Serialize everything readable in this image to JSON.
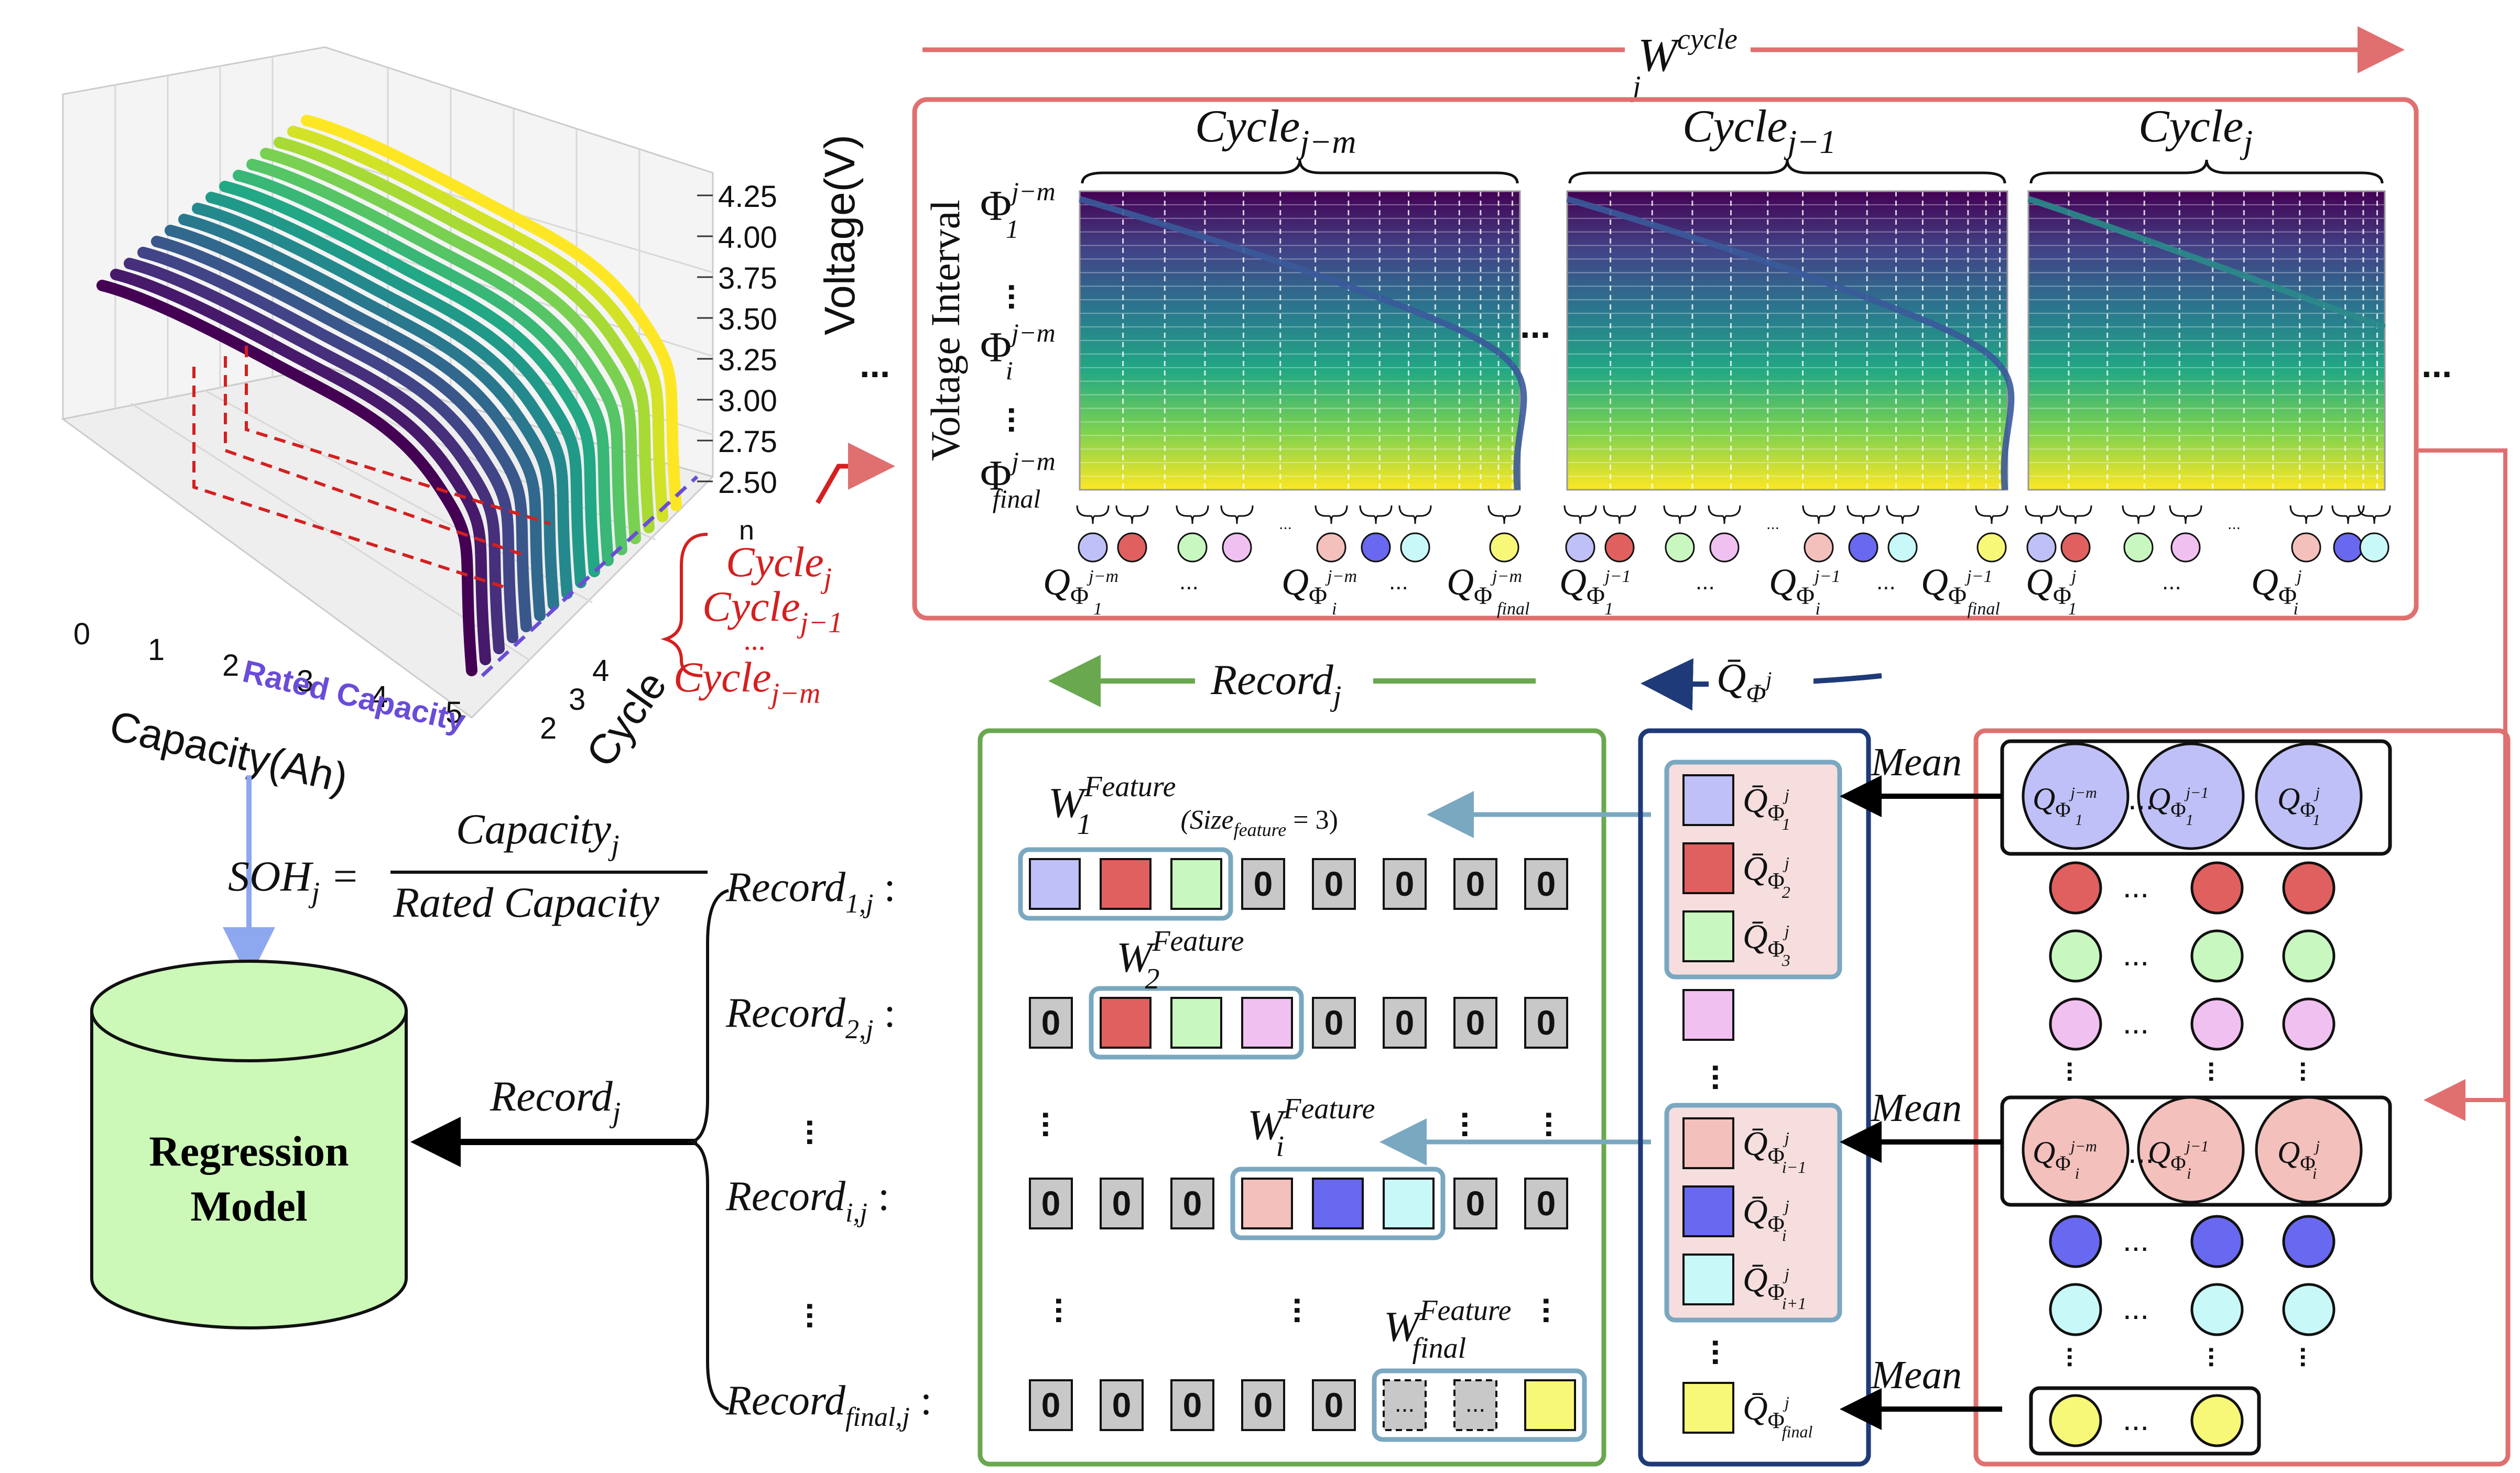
{
  "plot3d": {
    "voltage_ticks": [
      "4.25",
      "4.00",
      "3.75",
      "3.50",
      "3.25",
      "3.00",
      "2.75",
      "2.50"
    ],
    "voltage_label": "Voltage(V)",
    "capacity_ticks": [
      "0",
      "1",
      "2",
      "3",
      "4",
      "5"
    ],
    "capacity_label": "Capacity(Ah)",
    "cycle_ticks": [
      "2",
      "3",
      "4"
    ],
    "cycle_label": "Cycle",
    "cycle_n": "n",
    "rated_capacity": "Rated Capacity",
    "ellipsis": "..."
  },
  "cycle_labels": {
    "j": "Cycle",
    "j_sub": "j",
    "j1": "Cycle",
    "j1_sub": "j−1",
    "dots": "...",
    "jm": "Cycle",
    "jm_sub": "j−m"
  },
  "window": {
    "title_base": "W",
    "title_sup": "cycle",
    "title_sub": "j"
  },
  "panels": [
    {
      "name": "Cycle",
      "sub": "j−m"
    },
    {
      "name": "Cycle",
      "sub": "j−1"
    },
    {
      "name": "Cycle",
      "sub": "j"
    }
  ],
  "voltage_interval": "Voltage Interval",
  "phi_labels": [
    {
      "base": "Φ",
      "sub": "1",
      "sup": "j−m"
    },
    {
      "base": "Φ",
      "sub": "i",
      "sup": "j−m"
    },
    {
      "base": "Φ",
      "sub": "final",
      "sup": "j−m"
    }
  ],
  "q_labels": [
    {
      "text": "Q",
      "sub": "Φ",
      "subsub": "1",
      "sup": "j−m"
    },
    {
      "text": "Q",
      "sub": "Φ",
      "subsub": "i",
      "sup": "j−m"
    },
    {
      "text": "Q",
      "sub": "Φ",
      "subsub": "final",
      "sup": "j−m"
    },
    {
      "text": "Q",
      "sub": "Φ",
      "subsub": "1",
      "sup": "j−1"
    },
    {
      "text": "Q",
      "sub": "Φ",
      "subsub": "i",
      "sup": "j−1"
    },
    {
      "text": "Q",
      "sub": "Φ",
      "subsub": "final",
      "sup": "j−1"
    },
    {
      "text": "Q",
      "sub": "Φ",
      "subsub": "1",
      "sup": "j"
    },
    {
      "text": "Q",
      "sub": "Φ",
      "subsub": "i",
      "sup": "j"
    }
  ],
  "record_arrow": {
    "base": "Record",
    "sub": "j"
  },
  "qbar_arrow": {
    "base": "Q̄",
    "sub": "Φ",
    "sup": "j"
  },
  "mean_label": "Mean",
  "soh": {
    "lhs": "SOH",
    "lhs_sub": "j",
    "num": "Capacity",
    "num_sub": "j",
    "den": "Rated Capacity"
  },
  "model": {
    "line1": "Regression",
    "line2": "Model"
  },
  "record_left": {
    "base": "Record",
    "sub": "j"
  },
  "records": [
    {
      "base": "Record",
      "sub": "1,j",
      "colon": ":"
    },
    {
      "base": "Record",
      "sub": "2,j",
      "colon": ":"
    },
    {
      "base": "Record",
      "sub": "i,j",
      "colon": ":"
    },
    {
      "base": "Record",
      "sub": "final,j",
      "colon": ":"
    }
  ],
  "feature_windows": [
    {
      "base": "W",
      "sub": "1",
      "sup": "Feature",
      "extra": "(Size",
      "extra_sub": "feature",
      "extra_end": " = 3)"
    },
    {
      "base": "W",
      "sub": "2",
      "sup": "Feature"
    },
    {
      "base": "W",
      "sub": "i",
      "sup": "Feature"
    },
    {
      "base": "W",
      "sub": "final",
      "sup": "Feature"
    }
  ],
  "zero": "0",
  "dots_cell": "...",
  "qbar_items": [
    {
      "base": "Q̄",
      "sub": "Φ",
      "subsub": "1",
      "sup": "j"
    },
    {
      "base": "Q̄",
      "sub": "Φ",
      "subsub": "2",
      "sup": "j"
    },
    {
      "base": "Q̄",
      "sub": "Φ",
      "subsub": "3",
      "sup": "j"
    },
    {
      "base": "Q̄",
      "sub": "Φ",
      "subsub": "i−1",
      "sup": "j"
    },
    {
      "base": "Q̄",
      "sub": "Φ",
      "subsub": "i",
      "sup": "j"
    },
    {
      "base": "Q̄",
      "sub": "Φ",
      "subsub": "i+1",
      "sup": "j"
    },
    {
      "base": "Q̄",
      "sub": "Φ",
      "subsub": "final",
      "sup": "j"
    }
  ],
  "mean_circles_top": [
    {
      "text": "Q",
      "sub": "Φ",
      "subsub": "1",
      "sup": "j−m"
    },
    {
      "text": "Q",
      "sub": "Φ",
      "subsub": "1",
      "sup": "j−1"
    },
    {
      "text": "Q",
      "sub": "Φ",
      "subsub": "1",
      "sup": "j"
    }
  ],
  "mean_circles_mid": [
    {
      "text": "Q",
      "sub": "Φ",
      "subsub": "i",
      "sup": "j−m"
    },
    {
      "text": "Q",
      "sub": "Φ",
      "subsub": "i",
      "sup": "j−1"
    },
    {
      "text": "Q",
      "sub": "Φ",
      "subsub": "i",
      "sup": "j"
    }
  ],
  "colors": {
    "lavender": "#c0c0f8",
    "red": "#e06060",
    "green": "#c8f8c0",
    "pink": "#f0c0f0",
    "salmon": "#f4c0bc",
    "blue": "#6868f0",
    "cyan": "#c8f8f8",
    "yellow": "#f8f878",
    "frame_red": "#e07070",
    "frame_green": "#6aa84f",
    "frame_navy": "#1f3a78",
    "window_blue": "#7aa8c0"
  }
}
